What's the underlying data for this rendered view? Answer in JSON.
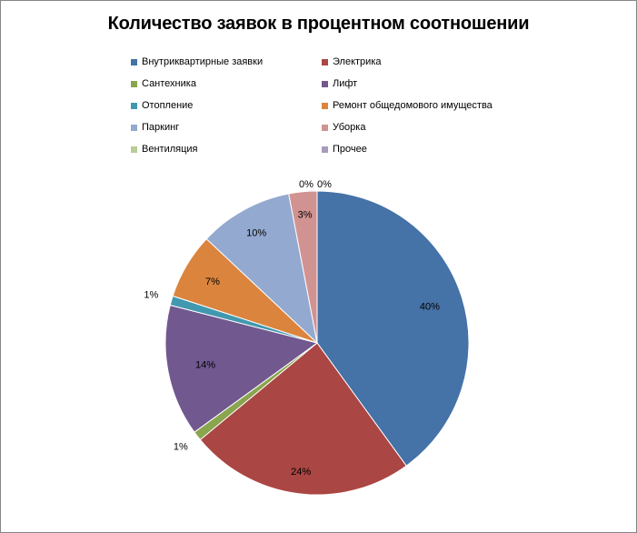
{
  "chart_data": {
    "type": "pie",
    "title": "Количество заявок в процентном соотношении",
    "legend_position": "top",
    "slices": [
      {
        "name": "Внутриквартирные заявки",
        "value": 40,
        "label": "40%",
        "color": "#4572a7"
      },
      {
        "name": "Электрика",
        "value": 24,
        "label": "24%",
        "color": "#aa4643"
      },
      {
        "name": "Сантехника",
        "value": 1,
        "label": "1%",
        "color": "#89a54e"
      },
      {
        "name": "Лифт",
        "value": 14,
        "label": "14%",
        "color": "#71588f"
      },
      {
        "name": "Отопление",
        "value": 1,
        "label": "1%",
        "color": "#4198af"
      },
      {
        "name": "Ремонт общедомового имущества",
        "value": 7,
        "label": "7%",
        "color": "#db843d"
      },
      {
        "name": "Паркинг",
        "value": 10,
        "label": "10%",
        "color": "#93a9cf"
      },
      {
        "name": "Уборка",
        "value": 3,
        "label": "3%",
        "color": "#d19392"
      },
      {
        "name": "Вентиляция",
        "value": 0,
        "label": "0%",
        "color": "#b9cd96"
      },
      {
        "name": "Прочее",
        "value": 0,
        "label": "0%",
        "color": "#a99bbd"
      }
    ]
  }
}
